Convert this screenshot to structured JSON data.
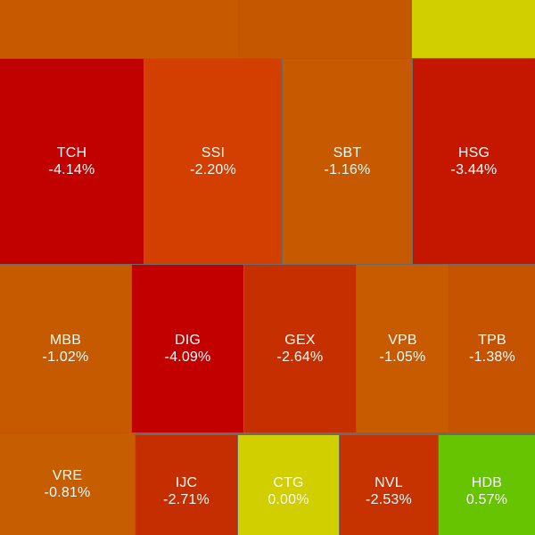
{
  "heatmap": {
    "tiles": [
      {
        "id": "top-1",
        "symbol": "",
        "change": "",
        "color": "#c75a00"
      },
      {
        "id": "top-2",
        "symbol": "",
        "change": "",
        "color": "#c55700"
      },
      {
        "id": "top-3",
        "symbol": "",
        "change": "",
        "color": "#d2cf00"
      },
      {
        "id": "tch",
        "symbol": "TCH",
        "change": "-4.14%",
        "color": "#c10000"
      },
      {
        "id": "ssi",
        "symbol": "SSI",
        "change": "-2.20%",
        "color": "#d33f00"
      },
      {
        "id": "sbt",
        "symbol": "SBT",
        "change": "-1.16%",
        "color": "#c75a00"
      },
      {
        "id": "hsg",
        "symbol": "HSG",
        "change": "-3.44%",
        "color": "#c51700"
      },
      {
        "id": "mbb",
        "symbol": "MBB",
        "change": "-1.02%",
        "color": "#c55a00"
      },
      {
        "id": "dig",
        "symbol": "DIG",
        "change": "-4.09%",
        "color": "#c20000"
      },
      {
        "id": "gex",
        "symbol": "GEX",
        "change": "-2.64%",
        "color": "#c63000"
      },
      {
        "id": "vpb",
        "symbol": "VPB",
        "change": "-1.05%",
        "color": "#c85a00"
      },
      {
        "id": "tpb",
        "symbol": "TPB",
        "change": "-1.38%",
        "color": "#c65300"
      },
      {
        "id": "vre",
        "symbol": "VRE",
        "change": "-0.81%",
        "color": "#c65d00"
      },
      {
        "id": "ijc",
        "symbol": "IJC",
        "change": "-2.71%",
        "color": "#c42e00"
      },
      {
        "id": "ctg",
        "symbol": "CTG",
        "change": "0.00%",
        "color": "#d2cf00"
      },
      {
        "id": "nvl",
        "symbol": "NVL",
        "change": "-2.53%",
        "color": "#c63200"
      },
      {
        "id": "hdb",
        "symbol": "HDB",
        "change": "0.57%",
        "color": "#66c500"
      }
    ]
  }
}
